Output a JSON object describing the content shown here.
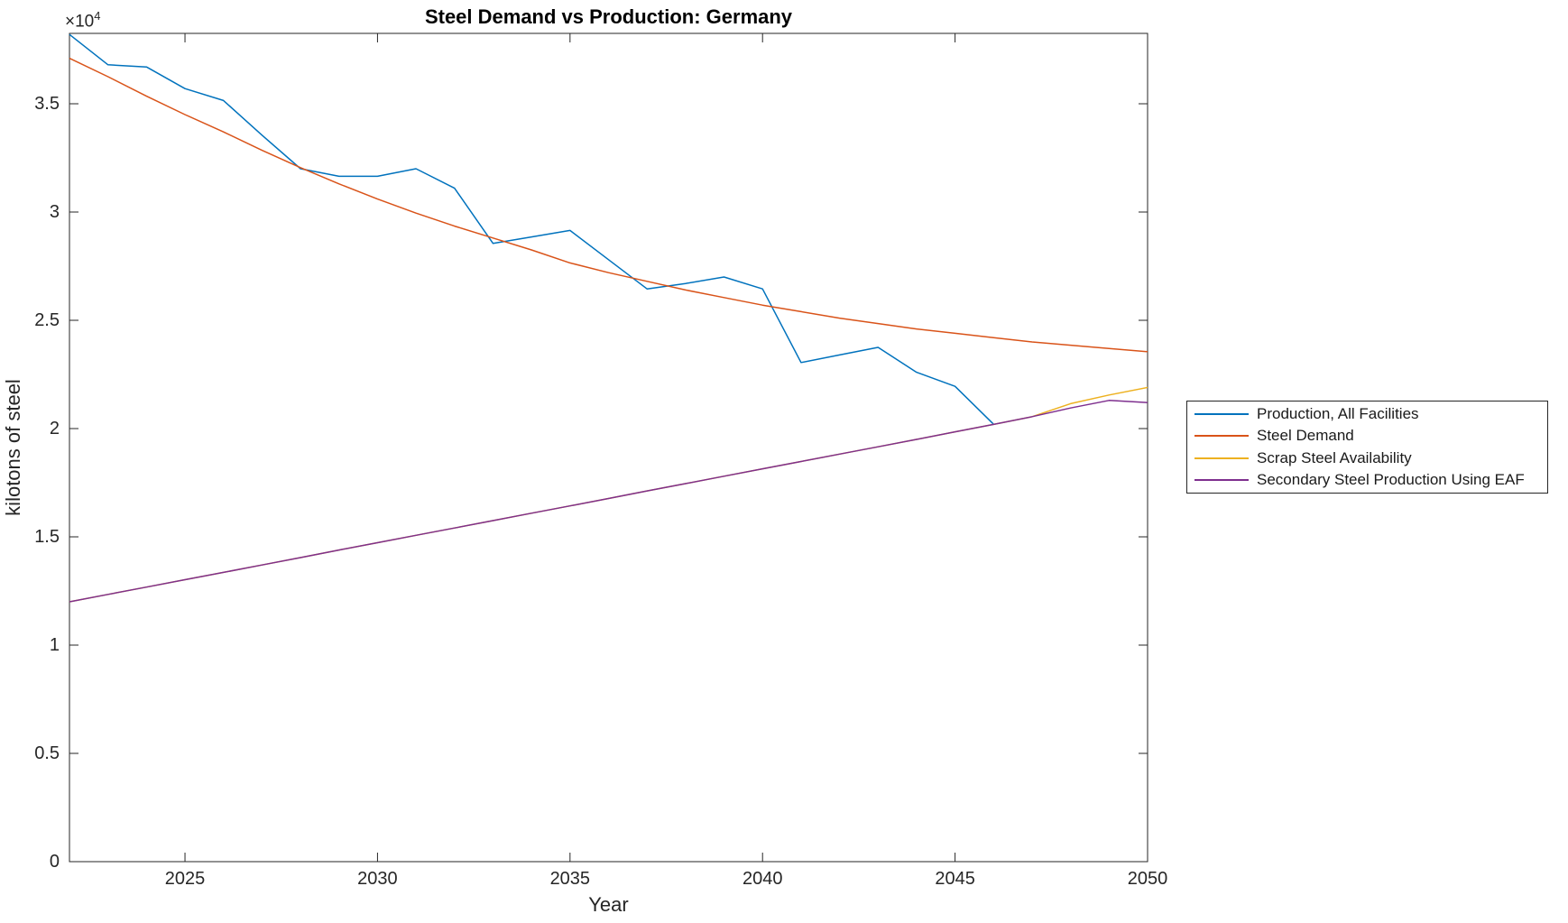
{
  "figure": {
    "title": "Steel Demand vs Production: Germany",
    "x_axis_label": "Year",
    "y_axis_label": "kilotons of steel",
    "y_exponent_base": "×10",
    "y_exponent_power": "4"
  },
  "colors": {
    "background": "#ffffff",
    "axis": "#262626",
    "tick_text": "#262626",
    "series_blue": "#0072BD",
    "series_orange": "#D95319",
    "series_yellow": "#EDB120",
    "series_purple": "#7E2F8E"
  },
  "chart_data": {
    "type": "line",
    "title": "Steel Demand vs Production: Germany",
    "xlabel": "Year",
    "ylabel": "kilotons of steel",
    "xlim": [
      2022,
      2050
    ],
    "ylim": [
      0,
      38250
    ],
    "y_unit_multiplier": "1e4",
    "grid": false,
    "legend_position": "outside-right",
    "x_ticks": [
      2025,
      2030,
      2035,
      2040,
      2045,
      2050
    ],
    "y_ticks": [
      {
        "value": 0,
        "label": "0"
      },
      {
        "value": 5000,
        "label": "0.5"
      },
      {
        "value": 10000,
        "label": "1"
      },
      {
        "value": 15000,
        "label": "1.5"
      },
      {
        "value": 20000,
        "label": "2"
      },
      {
        "value": 25000,
        "label": "2.5"
      },
      {
        "value": 30000,
        "label": "3"
      },
      {
        "value": 35000,
        "label": "3.5"
      }
    ],
    "notes": "Values in kilotons of steel. Scrap Steel Availability overlaps Secondary Steel Production Using EAF from 2022 until ~2047 (purple line drawn on top); Production (blue) series ends in 2046 where it meets the EAF line.",
    "series": [
      {
        "name": "Production, All Facilities",
        "color": "#0072BD",
        "points": [
          [
            2022,
            38200
          ],
          [
            2023,
            36800
          ],
          [
            2024,
            36700
          ],
          [
            2025,
            35700
          ],
          [
            2026,
            35150
          ],
          [
            2027,
            33550
          ],
          [
            2028,
            32000
          ],
          [
            2029,
            31650
          ],
          [
            2030,
            31650
          ],
          [
            2031,
            32000
          ],
          [
            2032,
            31100
          ],
          [
            2033,
            28550
          ],
          [
            2034,
            28850
          ],
          [
            2035,
            29150
          ],
          [
            2036,
            27800
          ],
          [
            2037,
            26450
          ],
          [
            2038,
            26700
          ],
          [
            2039,
            27000
          ],
          [
            2040,
            26450
          ],
          [
            2041,
            23050
          ],
          [
            2042,
            23400
          ],
          [
            2043,
            23750
          ],
          [
            2044,
            22600
          ],
          [
            2045,
            21950
          ],
          [
            2046,
            20200
          ]
        ]
      },
      {
        "name": "Steel Demand",
        "color": "#D95319",
        "points": [
          [
            2022,
            37100
          ],
          [
            2023,
            36250
          ],
          [
            2024,
            35350
          ],
          [
            2025,
            34500
          ],
          [
            2026,
            33700
          ],
          [
            2027,
            32850
          ],
          [
            2028,
            32050
          ],
          [
            2029,
            31300
          ],
          [
            2030,
            30600
          ],
          [
            2031,
            29950
          ],
          [
            2032,
            29350
          ],
          [
            2033,
            28800
          ],
          [
            2034,
            28250
          ],
          [
            2035,
            27650
          ],
          [
            2036,
            27200
          ],
          [
            2037,
            26800
          ],
          [
            2038,
            26400
          ],
          [
            2039,
            26050
          ],
          [
            2040,
            25700
          ],
          [
            2041,
            25400
          ],
          [
            2042,
            25100
          ],
          [
            2043,
            24850
          ],
          [
            2044,
            24600
          ],
          [
            2045,
            24400
          ],
          [
            2046,
            24200
          ],
          [
            2047,
            24000
          ],
          [
            2048,
            23850
          ],
          [
            2049,
            23700
          ],
          [
            2050,
            23550
          ]
        ]
      },
      {
        "name": "Scrap Steel Availability",
        "color": "#EDB120",
        "points": [
          [
            2022,
            12000
          ],
          [
            2023,
            12340
          ],
          [
            2024,
            12680
          ],
          [
            2025,
            13020
          ],
          [
            2026,
            13360
          ],
          [
            2027,
            13700
          ],
          [
            2028,
            14040
          ],
          [
            2029,
            14390
          ],
          [
            2030,
            14730
          ],
          [
            2031,
            15070
          ],
          [
            2032,
            15410
          ],
          [
            2033,
            15750
          ],
          [
            2034,
            16090
          ],
          [
            2035,
            16430
          ],
          [
            2036,
            16770
          ],
          [
            2037,
            17120
          ],
          [
            2038,
            17460
          ],
          [
            2039,
            17800
          ],
          [
            2040,
            18140
          ],
          [
            2041,
            18480
          ],
          [
            2042,
            18820
          ],
          [
            2043,
            19160
          ],
          [
            2044,
            19500
          ],
          [
            2045,
            19850
          ],
          [
            2046,
            20190
          ],
          [
            2047,
            20550
          ],
          [
            2048,
            21150
          ],
          [
            2049,
            21550
          ],
          [
            2050,
            21900
          ]
        ]
      },
      {
        "name": "Secondary Steel Production Using EAF",
        "color": "#7E2F8E",
        "points": [
          [
            2022,
            12000
          ],
          [
            2023,
            12340
          ],
          [
            2024,
            12680
          ],
          [
            2025,
            13020
          ],
          [
            2026,
            13360
          ],
          [
            2027,
            13700
          ],
          [
            2028,
            14040
          ],
          [
            2029,
            14390
          ],
          [
            2030,
            14730
          ],
          [
            2031,
            15070
          ],
          [
            2032,
            15410
          ],
          [
            2033,
            15750
          ],
          [
            2034,
            16090
          ],
          [
            2035,
            16430
          ],
          [
            2036,
            16770
          ],
          [
            2037,
            17120
          ],
          [
            2038,
            17460
          ],
          [
            2039,
            17800
          ],
          [
            2040,
            18140
          ],
          [
            2041,
            18480
          ],
          [
            2042,
            18820
          ],
          [
            2043,
            19160
          ],
          [
            2044,
            19500
          ],
          [
            2045,
            19850
          ],
          [
            2046,
            20190
          ],
          [
            2047,
            20550
          ],
          [
            2048,
            20950
          ],
          [
            2049,
            21300
          ],
          [
            2050,
            21200
          ]
        ]
      }
    ]
  }
}
